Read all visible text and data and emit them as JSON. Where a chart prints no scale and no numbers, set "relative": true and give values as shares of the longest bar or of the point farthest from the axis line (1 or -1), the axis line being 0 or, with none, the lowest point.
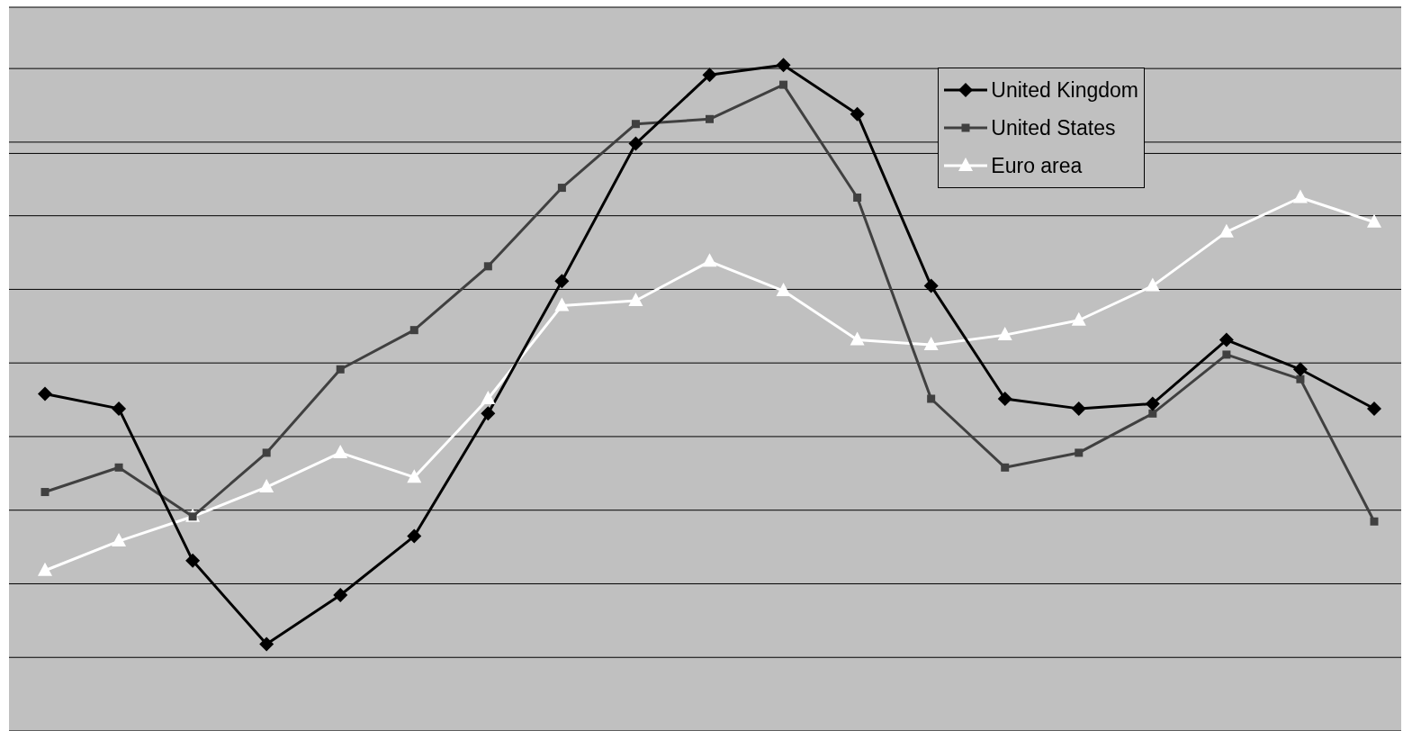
{
  "chart_data": {
    "type": "line",
    "relative": true,
    "categories": [
      null,
      null,
      null,
      null,
      null,
      null,
      null,
      null,
      null,
      null,
      null,
      null,
      null,
      null,
      null,
      null,
      null,
      null,
      null
    ],
    "grid": "y",
    "legend": "top right",
    "series": [
      {
        "name": "United Kingdom",
        "color": "#000000",
        "marker": "diamond",
        "values": [
          -0.49,
          -0.52,
          -0.83,
          -1,
          -0.9,
          -0.78,
          -0.53,
          -0.26,
          0.02,
          0.16,
          0.18,
          0.08,
          -0.27,
          -0.5,
          -0.52,
          -0.51,
          -0.38,
          -0.44,
          -0.52
        ]
      },
      {
        "name": "United States",
        "color": "#404040",
        "marker": "square",
        "values": [
          -0.69,
          -0.64,
          -0.74,
          -0.61,
          -0.44,
          -0.36,
          -0.23,
          -0.07,
          0.06,
          0.07,
          0.14,
          -0.09,
          -0.5,
          -0.64,
          -0.61,
          -0.53,
          -0.41,
          -0.46,
          -0.75
        ]
      },
      {
        "name": "Euro area",
        "color": "#ffffff",
        "marker": "triangle",
        "values": [
          -0.85,
          -0.79,
          -0.74,
          -0.68,
          -0.61,
          -0.66,
          -0.5,
          -0.31,
          -0.3,
          -0.22,
          -0.28,
          -0.38,
          -0.39,
          -0.37,
          -0.34,
          -0.27,
          -0.16,
          -0.09,
          -0.14
        ]
      }
    ]
  }
}
